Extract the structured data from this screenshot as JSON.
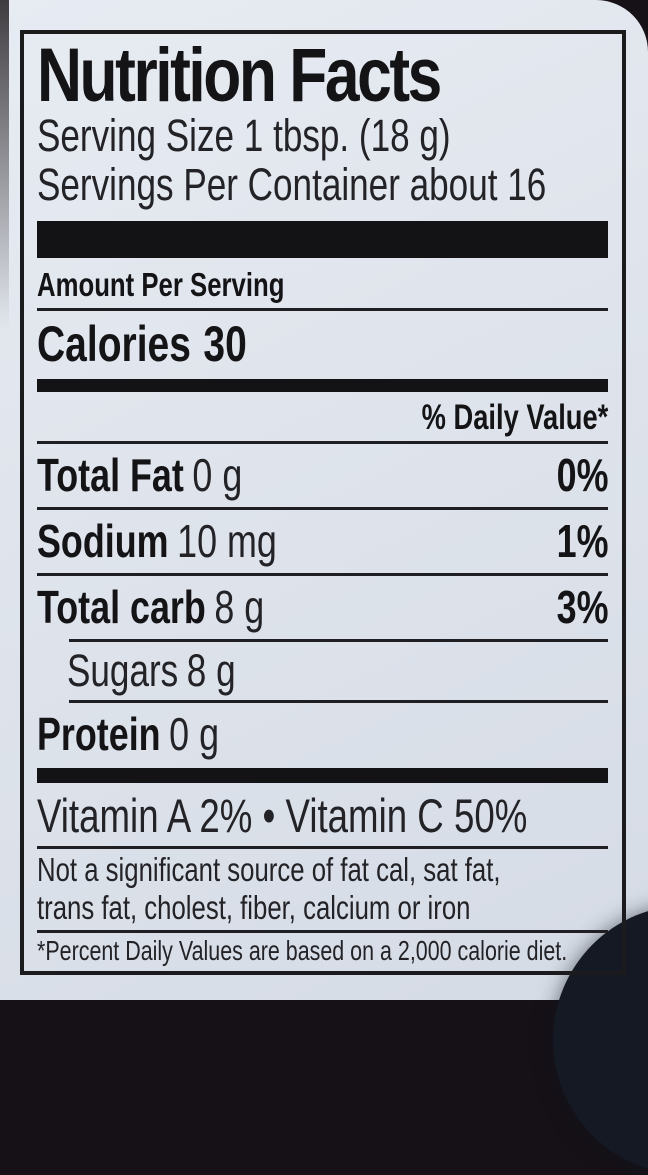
{
  "label": {
    "title": "Nutrition Facts",
    "serving_size": "Serving Size 1 tbsp. (18 g)",
    "servings_per_container": "Servings Per Container about 16",
    "amount_per_serving": "Amount Per Serving",
    "calories_label": "Calories",
    "calories_value": "30",
    "daily_value_header": "% Daily Value*",
    "nutrients": [
      {
        "name": "Total Fat",
        "amount": "0 g",
        "dv": "0%"
      },
      {
        "name": "Sodium",
        "amount": "10 mg",
        "dv": "1%"
      },
      {
        "name": "Total carb",
        "amount": "8 g",
        "dv": "3%"
      },
      {
        "name": "Sugars",
        "amount": "8 g",
        "dv": ""
      },
      {
        "name": "Protein",
        "amount": "0 g",
        "dv": ""
      }
    ],
    "vitamins_line": "Vitamin A 2% • Vitamin C 50%",
    "not_significant_line1": "Not a significant source of fat cal, sat fat,",
    "not_significant_line2": "trans fat, cholest, fiber, calcium or iron",
    "footnote": "*Percent Daily Values are based on a 2,000 calorie diet."
  },
  "colors": {
    "ink": "#232327",
    "ink_bold": "#141417",
    "rule": "#1f1f23",
    "paper": "#dfe4ec",
    "background": "#161117"
  }
}
